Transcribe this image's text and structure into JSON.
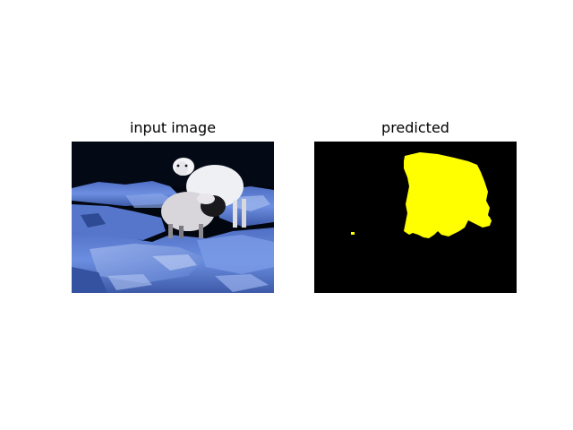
{
  "panels": {
    "input": {
      "title": "input image"
    },
    "prediction": {
      "title": "predicted"
    }
  },
  "colors": {
    "background": "#ffffff",
    "mask_background": "#000000",
    "mask_foreground": "#ffff00",
    "rock_blue": "#5b7fd1",
    "sheep_white": "#e8e8ee"
  }
}
